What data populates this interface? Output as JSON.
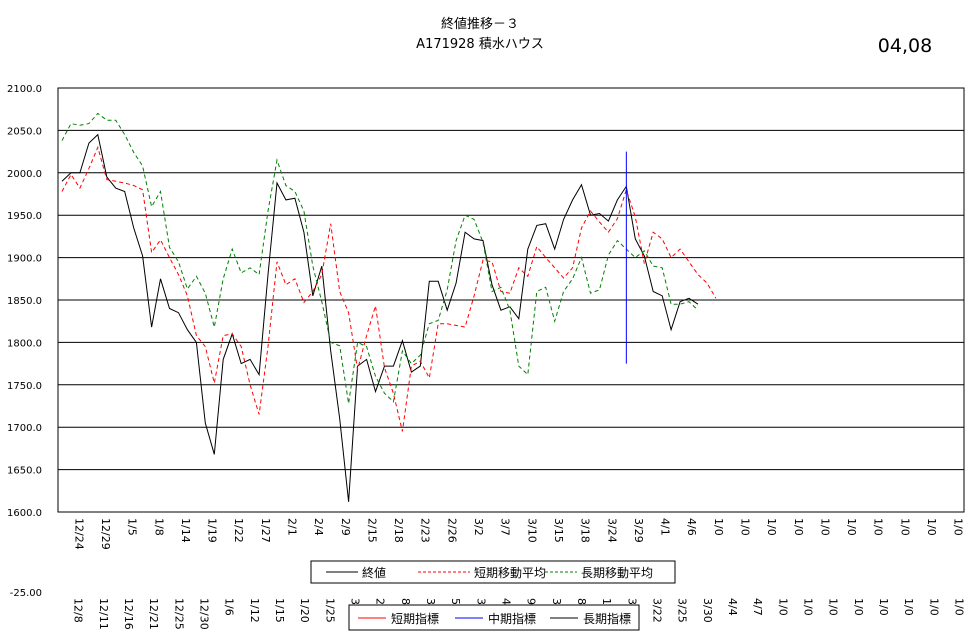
{
  "header": {
    "title_line1": "終値推移－３",
    "title_line2": "A171928 積水ハウス",
    "date_code": "04,08"
  },
  "chart_data": [
    {
      "type": "line",
      "ylim": [
        1600,
        2100
      ],
      "y_ticks": [
        "2100.0",
        "2050.0",
        "2000.0",
        "1950.0",
        "1900.0",
        "1850.0",
        "1800.0",
        "1750.0",
        "1700.0",
        "1650.0",
        "1600.0"
      ],
      "x_tick_labels": [
        "12/24",
        "12/29",
        "1/5",
        "1/8",
        "1/14",
        "1/19",
        "1/22",
        "1/27",
        "2/1",
        "2/4",
        "2/9",
        "2/15",
        "2/18",
        "2/23",
        "2/26",
        "3/2",
        "3/7",
        "3/10",
        "3/15",
        "3/18",
        "3/24",
        "3/29",
        "4/1",
        "4/6",
        "1/0",
        "1/0",
        "1/0",
        "1/0",
        "1/0",
        "1/0",
        "1/0",
        "1/0",
        "1/0",
        "1/0"
      ],
      "series": [
        {
          "name": "終値",
          "color": "#000000",
          "dash": "none",
          "values": [
            1990,
            2000,
            2000,
            2035,
            2045,
            1995,
            1982,
            1978,
            1935,
            1902,
            1818,
            1875,
            1840,
            1835,
            1815,
            1800,
            1705,
            1668,
            1780,
            1810,
            1775,
            1780,
            1762,
            1880,
            1988,
            1968,
            1970,
            1930,
            1855,
            1890,
            1790,
            1710,
            1612,
            1772,
            1780,
            1742,
            1772,
            1772,
            1802,
            1765,
            1772,
            1872,
            1872,
            1838,
            1870,
            1930,
            1922,
            1920,
            1868,
            1838,
            1842,
            1828,
            1910,
            1938,
            1940,
            1910,
            1945,
            1968,
            1986,
            1950,
            1952,
            1943,
            1968,
            1984,
            1922,
            1902,
            1860,
            1855,
            1815,
            1848,
            1852,
            1845
          ]
        },
        {
          "name": "短期移動平均",
          "color": "#ff0000",
          "dash": "4,3",
          "values": [
            1978,
            1998,
            1982,
            2005,
            2030,
            1992,
            1990,
            1988,
            1985,
            1980,
            1906,
            1921,
            1900,
            1880,
            1855,
            1808,
            1795,
            1752,
            1808,
            1810,
            1795,
            1750,
            1715,
            1795,
            1895,
            1868,
            1875,
            1847,
            1860,
            1880,
            1940,
            1860,
            1835,
            1768,
            1808,
            1843,
            1770,
            1740,
            1695,
            1772,
            1778,
            1758,
            1822,
            1822,
            1820,
            1818,
            1855,
            1897,
            1895,
            1860,
            1858,
            1888,
            1878,
            1913,
            1900,
            1888,
            1876,
            1888,
            1935,
            1955,
            1942,
            1930,
            1946,
            1980,
            1948,
            1893,
            1930,
            1922,
            1900,
            1910,
            1895,
            1880,
            1870,
            1852
          ]
        },
        {
          "name": "長期移動平均",
          "color": "#008000",
          "dash": "4,3",
          "values": [
            2038,
            2058,
            2056,
            2058,
            2070,
            2062,
            2062,
            2045,
            2024,
            2008,
            1960,
            1978,
            1912,
            1895,
            1863,
            1878,
            1858,
            1818,
            1875,
            1910,
            1882,
            1888,
            1880,
            1955,
            2015,
            1985,
            1978,
            1955,
            1890,
            1848,
            1800,
            1796,
            1728,
            1800,
            1795,
            1760,
            1740,
            1730,
            1790,
            1775,
            1785,
            1822,
            1826,
            1862,
            1920,
            1950,
            1945,
            1918,
            1860,
            1865,
            1838,
            1772,
            1762,
            1860,
            1865,
            1825,
            1860,
            1875,
            1900,
            1858,
            1862,
            1903,
            1920,
            1910,
            1900,
            1908,
            1890,
            1888,
            1845,
            1845,
            1848,
            1838
          ]
        }
      ],
      "vertical_marker_index": 63,
      "legend": [
        "終値",
        "短期移動平均",
        "長期移動平均"
      ],
      "legend_position": "bottom",
      "grid": true
    },
    {
      "type": "line",
      "y_tick_label": "-25.00",
      "x_tick_labels": [
        "12/8",
        "12/11",
        "12/16",
        "12/21",
        "12/25",
        "12/30",
        "1/6",
        "1/12",
        "1/15",
        "1/20",
        "1/25",
        "3",
        "2",
        "8",
        "3",
        "5",
        "3",
        "4",
        "9",
        "3",
        "8",
        "1",
        "3/16",
        "3/22",
        "3/25",
        "3/30",
        "4/4",
        "4/7",
        "1/0",
        "1/0",
        "1/0",
        "1/0",
        "1/0",
        "1/0",
        "1/0",
        "1/0"
      ],
      "legend": [
        "短期指標",
        "中期指標",
        "長期指標"
      ],
      "legend_colors": [
        "#ff0000",
        "#0000ff",
        "#000000"
      ],
      "legend_position": "bottom"
    }
  ]
}
